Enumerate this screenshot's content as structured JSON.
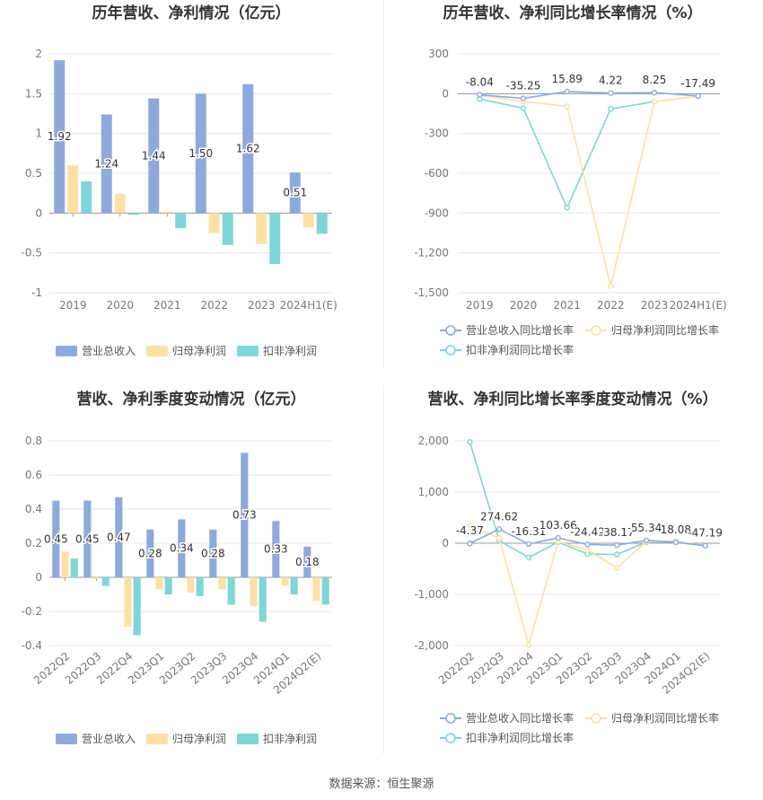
{
  "source": "数据来源：恒生聚源",
  "colors": {
    "revenue": "#8eaadc",
    "net_profit": "#fde0a6",
    "deducted": "#7fd6d6",
    "grid": "#e8e8ea",
    "axis_text": "#777777",
    "title": "#333333"
  },
  "chart_data": [
    {
      "type": "bar",
      "title": "历年营收、净利情况（亿元）",
      "categories": [
        "2019",
        "2020",
        "2021",
        "2022",
        "2023",
        "2024H1(E)"
      ],
      "ylim": [
        -1,
        2
      ],
      "yticks": [
        -1,
        -0.5,
        0,
        0.5,
        1,
        1.5,
        2
      ],
      "ytick_labels": [
        "-1",
        "-0.5",
        "0",
        "0.5",
        "1",
        "1.5",
        "2"
      ],
      "series": [
        {
          "name": "营业总收入",
          "values": [
            1.92,
            1.24,
            1.44,
            1.5,
            1.62,
            0.51
          ],
          "labels": [
            "1.92",
            "1.24",
            "1.44",
            "1.50",
            "1.62",
            "0.51"
          ]
        },
        {
          "name": "归母净利润",
          "values": [
            0.6,
            0.24,
            0.02,
            -0.25,
            -0.39,
            -0.18
          ]
        },
        {
          "name": "扣非净利润",
          "values": [
            0.4,
            -0.02,
            -0.19,
            -0.4,
            -0.64,
            -0.26
          ]
        }
      ],
      "legend": "bottom"
    },
    {
      "type": "line",
      "title": "历年营收、净利同比增长率情况（%）",
      "categories": [
        "2019",
        "2020",
        "2021",
        "2022",
        "2023",
        "2024H1(E)"
      ],
      "ylim": [
        -1500,
        300
      ],
      "yticks": [
        -1500,
        -1200,
        -900,
        -600,
        -300,
        0,
        300
      ],
      "ytick_labels": [
        "-1,500",
        "-1,200",
        "-900",
        "-600",
        "-300",
        "0",
        "300"
      ],
      "series": [
        {
          "name": "营业总收入同比增长率",
          "values": [
            -8.04,
            -35.25,
            15.89,
            4.22,
            8.25,
            -17.49
          ],
          "labels": [
            "-8.04",
            "-35.25",
            "15.89",
            "4.22",
            "8.25",
            "-17.49"
          ]
        },
        {
          "name": "归母净利润同比增长率",
          "values": [
            -10,
            -60,
            -95,
            -1450,
            -60,
            -20
          ]
        },
        {
          "name": "扣非净利润同比增长率",
          "values": [
            -40,
            -110,
            -860,
            -115,
            -60,
            -20
          ]
        }
      ],
      "legend": "bottom"
    },
    {
      "type": "bar",
      "title": "营收、净利季度变动情况（亿元）",
      "categories": [
        "2022Q2",
        "2022Q3",
        "2022Q4",
        "2023Q1",
        "2023Q2",
        "2023Q3",
        "2023Q4",
        "2024Q1",
        "2024Q2(E)"
      ],
      "ylim": [
        -0.4,
        0.8
      ],
      "yticks": [
        -0.4,
        -0.2,
        0,
        0.2,
        0.4,
        0.6,
        0.8
      ],
      "ytick_labels": [
        "-0.4",
        "-0.2",
        "0",
        "0.2",
        "0.4",
        "0.6",
        "0.8"
      ],
      "series": [
        {
          "name": "营业总收入",
          "values": [
            0.45,
            0.45,
            0.47,
            0.28,
            0.34,
            0.28,
            0.73,
            0.33,
            0.18
          ],
          "labels": [
            "0.45",
            "0.45",
            "0.47",
            "0.28",
            "0.34",
            "0.28",
            "0.73",
            "0.33",
            "0.18"
          ]
        },
        {
          "name": "归母净利润",
          "values": [
            0.15,
            -0.01,
            -0.29,
            -0.07,
            -0.09,
            -0.07,
            -0.17,
            -0.05,
            -0.14
          ]
        },
        {
          "name": "扣非净利润",
          "values": [
            0.11,
            -0.05,
            -0.34,
            -0.1,
            -0.11,
            -0.16,
            -0.26,
            -0.1,
            -0.16
          ]
        }
      ],
      "legend": "bottom"
    },
    {
      "type": "line",
      "title": "营收、净利同比增长率季度变动情况（%）",
      "categories": [
        "2022Q2",
        "2022Q3",
        "2022Q4",
        "2023Q1",
        "2023Q2",
        "2023Q3",
        "2023Q4",
        "2024Q1",
        "2024Q2(E)"
      ],
      "ylim": [
        -2000,
        2000
      ],
      "yticks": [
        -2000,
        -1000,
        0,
        1000,
        2000
      ],
      "ytick_labels": [
        "-2,000",
        "-1,000",
        "0",
        "1,000",
        "2,000"
      ],
      "series": [
        {
          "name": "营业总收入同比增长率",
          "values": [
            -4.37,
            274.62,
            -16.31,
            103.66,
            -24.42,
            -38.17,
            55.34,
            18.08,
            -47.19
          ],
          "labels": [
            "-4.37",
            "274.62",
            "-16.31",
            "103.66",
            "-24.42",
            "-38.17",
            "55.34",
            "18.08",
            "-47.19"
          ]
        },
        {
          "name": "归母净利润同比增长率",
          "values": [
            350,
            100,
            -1990,
            30,
            -130,
            -480,
            30,
            40,
            -50
          ]
        },
        {
          "name": "扣非净利润同比增长率",
          "values": [
            1980,
            50,
            -280,
            20,
            -210,
            -220,
            20,
            20,
            -50
          ]
        }
      ],
      "legend": "bottom"
    }
  ]
}
